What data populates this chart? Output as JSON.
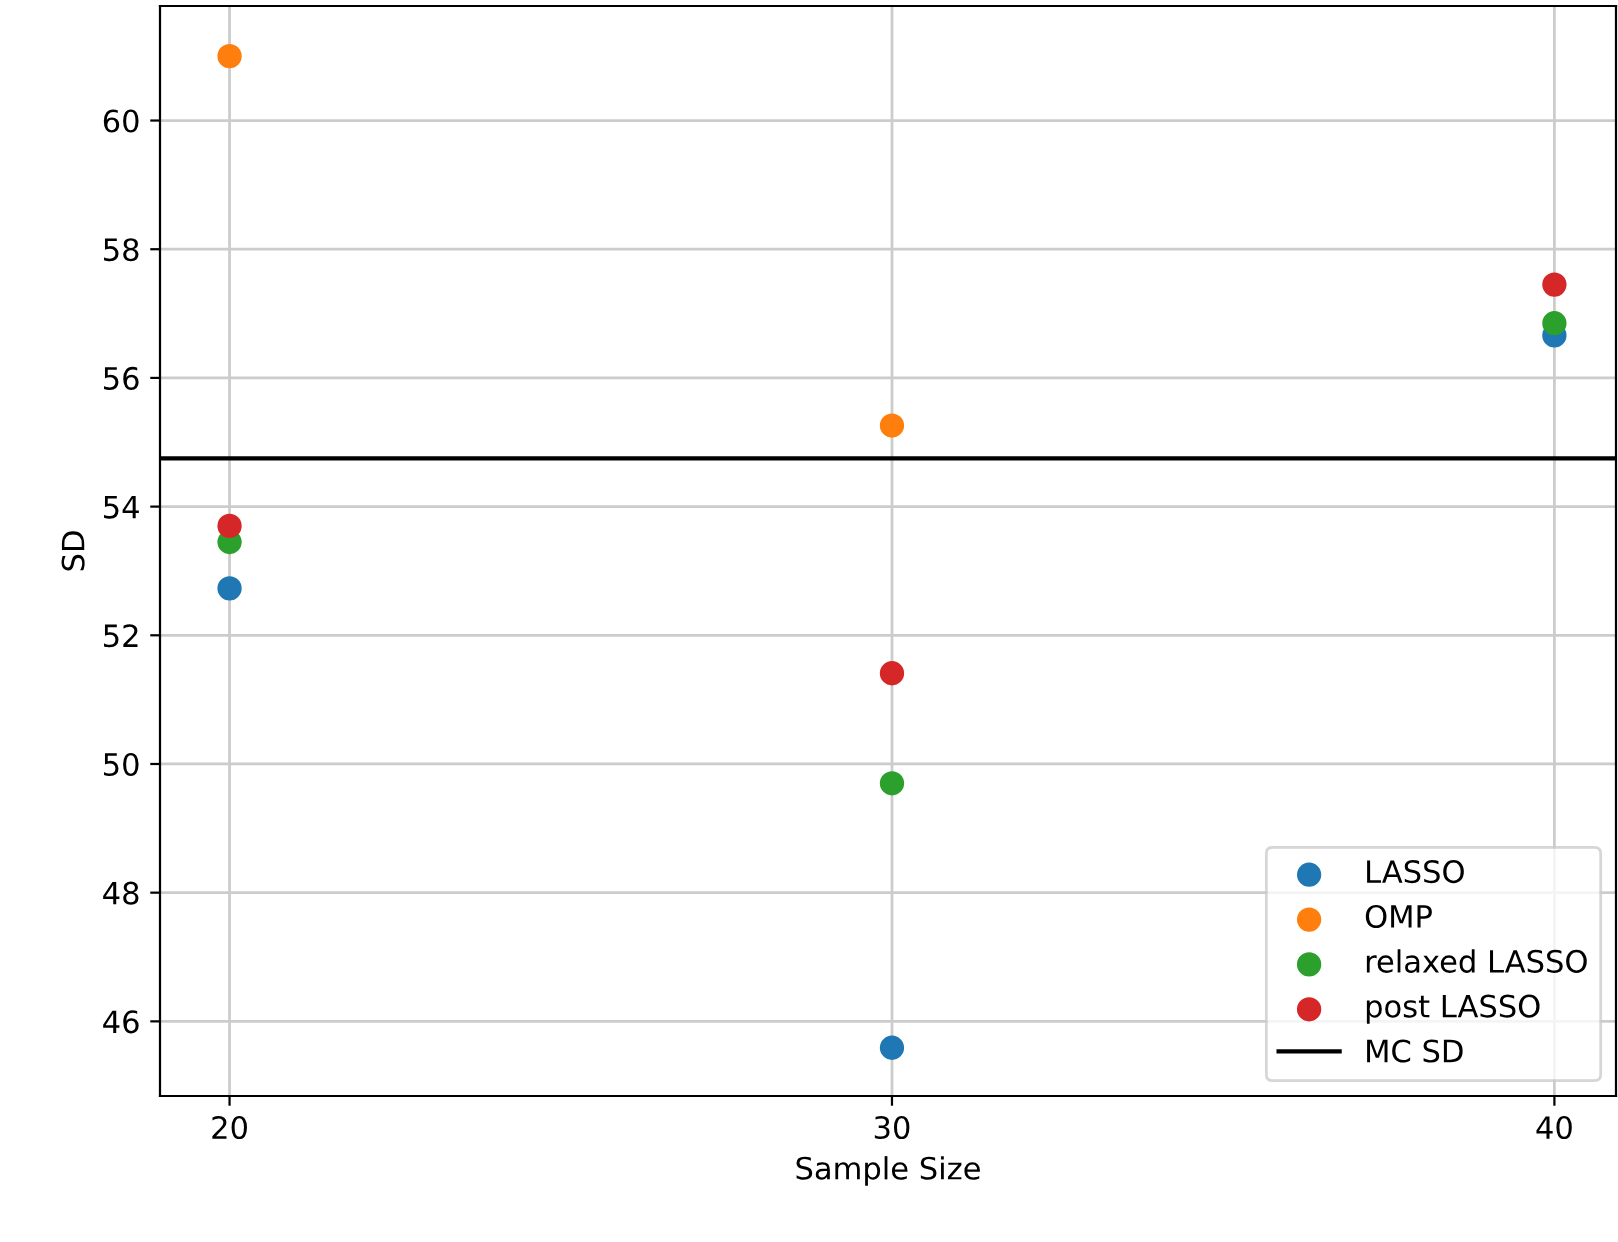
{
  "chart_data": {
    "type": "scatter",
    "xlabel": "Sample Size",
    "ylabel": "SD",
    "x": [
      20,
      30,
      40
    ],
    "series": [
      {
        "name": "LASSO",
        "color": "#1f77b4",
        "values": [
          52.73,
          45.59,
          56.66
        ]
      },
      {
        "name": "OMP",
        "color": "#ff7f0e",
        "values": [
          61.0,
          55.26,
          null
        ]
      },
      {
        "name": "relaxed LASSO",
        "color": "#2ca02c",
        "values": [
          53.45,
          49.7,
          56.85
        ]
      },
      {
        "name": "post LASSO",
        "color": "#d62728",
        "values": [
          53.7,
          51.41,
          57.45
        ]
      }
    ],
    "ref_lines": [
      {
        "axis": "y",
        "value": 54.75,
        "label": "MC SD",
        "color": "#000000",
        "line_style": "solid"
      }
    ],
    "xlim": [
      18.95,
      40.93
    ],
    "ylim": [
      44.84,
      61.78
    ],
    "xticks": [
      20,
      30,
      40
    ],
    "yticks": [
      46,
      48,
      50,
      52,
      54,
      56,
      58,
      60
    ],
    "grid": true,
    "legend": "bottom right",
    "marker": "circle"
  }
}
